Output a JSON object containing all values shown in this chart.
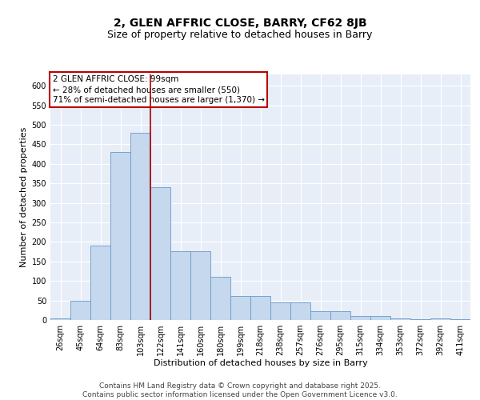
{
  "title": "2, GLEN AFFRIC CLOSE, BARRY, CF62 8JB",
  "subtitle": "Size of property relative to detached houses in Barry",
  "xlabel": "Distribution of detached houses by size in Barry",
  "ylabel": "Number of detached properties",
  "categories": [
    "26sqm",
    "45sqm",
    "64sqm",
    "83sqm",
    "103sqm",
    "122sqm",
    "141sqm",
    "160sqm",
    "180sqm",
    "199sqm",
    "218sqm",
    "238sqm",
    "257sqm",
    "276sqm",
    "295sqm",
    "315sqm",
    "334sqm",
    "353sqm",
    "372sqm",
    "392sqm",
    "411sqm"
  ],
  "values": [
    5,
    50,
    190,
    430,
    480,
    340,
    177,
    177,
    110,
    62,
    62,
    45,
    45,
    22,
    22,
    11,
    11,
    5,
    3,
    5,
    3
  ],
  "bar_color": "#c5d8ed",
  "bar_edge_color": "#6699cc",
  "background_color": "#e8eef8",
  "grid_color": "#ffffff",
  "vline_color": "#aa0000",
  "vline_x": 4.5,
  "annotation_text": "2 GLEN AFFRIC CLOSE: 99sqm\n← 28% of detached houses are smaller (550)\n71% of semi-detached houses are larger (1,370) →",
  "annotation_box_color": "#ffffff",
  "annotation_box_edge_color": "#bb0000",
  "ylim": [
    0,
    630
  ],
  "yticks": [
    0,
    50,
    100,
    150,
    200,
    250,
    300,
    350,
    400,
    450,
    500,
    550,
    600
  ],
  "footer": "Contains HM Land Registry data © Crown copyright and database right 2025.\nContains public sector information licensed under the Open Government Licence v3.0.",
  "title_fontsize": 10,
  "subtitle_fontsize": 9,
  "axis_label_fontsize": 8,
  "tick_fontsize": 7,
  "annotation_fontsize": 7.5,
  "footer_fontsize": 6.5
}
